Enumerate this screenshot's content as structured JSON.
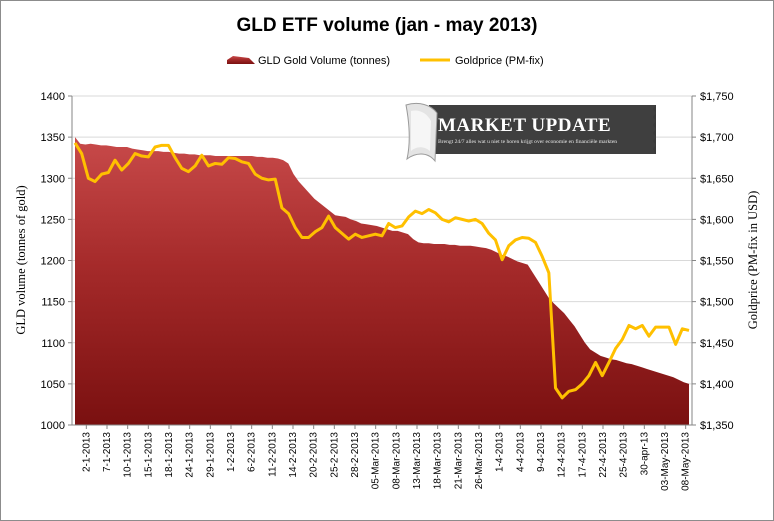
{
  "chart_data": {
    "type": "area+line",
    "title": "GLD ETF volume (jan - may 2013)",
    "ylabel_left": "GLD volume (tonnes of gold)",
    "ylabel_right": "Goldprice (PM-fix in USD)",
    "ylim_left": [
      1000,
      1400
    ],
    "ylim_right": [
      1350,
      1750
    ],
    "yticks_left": [
      "1000",
      "1050",
      "1100",
      "1150",
      "1200",
      "1250",
      "1300",
      "1350",
      "1400"
    ],
    "yticks_right": [
      "$1,350",
      "$1,400",
      "$1,450",
      "$1,500",
      "$1,550",
      "$1,600",
      "$1,650",
      "$1,700",
      "$1,750"
    ],
    "grid": "horizontal",
    "legend_position": "top",
    "x_tick_labels": [
      "2-1-2013",
      "7-1-2013",
      "10-1-2013",
      "15-1-2013",
      "18-1-2013",
      "24-1-2013",
      "29-1-2013",
      "1-2-2013",
      "6-2-2013",
      "11-2-2013",
      "14-2-2013",
      "20-2-2013",
      "25-2-2013",
      "28-2-2013",
      "05-Mar-2013",
      "08-Mar-2013",
      "13-Mar-2013",
      "18-Mar-2013",
      "21-Mar-2013",
      "26-Mar-2013",
      "1-4-2013",
      "4-4-2013",
      "9-4-2013",
      "12-4-2013",
      "17-4-2013",
      "22-4-2013",
      "25-4-2013",
      "30-apr-13",
      "03-May-2013",
      "08-May-2013"
    ],
    "series": [
      {
        "name": "GLD Gold Volume (tonnes)",
        "type": "area",
        "axis": "left",
        "color": "#a52a2a",
        "values": [
          1350,
          1342,
          1341,
          1342,
          1341,
          1340,
          1340,
          1339,
          1338,
          1338,
          1338,
          1336,
          1335,
          1334,
          1333,
          1333,
          1333,
          1332,
          1332,
          1331,
          1330,
          1330,
          1329,
          1329,
          1328,
          1328,
          1328,
          1327,
          1327,
          1327,
          1327,
          1327,
          1327,
          1327,
          1327,
          1326,
          1326,
          1325,
          1325,
          1324,
          1322,
          1318,
          1305,
          1296,
          1289,
          1282,
          1275,
          1270,
          1265,
          1260,
          1255,
          1254,
          1253,
          1250,
          1248,
          1245,
          1244,
          1243,
          1242,
          1240,
          1238,
          1236,
          1236,
          1234,
          1232,
          1226,
          1222,
          1221,
          1221,
          1220,
          1220,
          1220,
          1219,
          1219,
          1218,
          1218,
          1218,
          1217,
          1216,
          1215,
          1213,
          1210,
          1207,
          1205,
          1202,
          1199,
          1197,
          1195,
          1185,
          1175,
          1165,
          1155,
          1148,
          1142,
          1136,
          1128,
          1120,
          1110,
          1100,
          1092,
          1088,
          1084,
          1082,
          1080,
          1079,
          1077,
          1075,
          1074,
          1072,
          1070,
          1068,
          1066,
          1064,
          1062,
          1060,
          1058,
          1055,
          1052,
          1050
        ]
      },
      {
        "name": "Goldprice (PM-fix)",
        "type": "line",
        "axis": "right",
        "color": "#ffc000",
        "values": [
          1693,
          1680,
          1650,
          1646,
          1655,
          1657,
          1672,
          1660,
          1668,
          1680,
          1677,
          1676,
          1688,
          1690,
          1690,
          1675,
          1662,
          1658,
          1665,
          1678,
          1665,
          1668,
          1667,
          1675,
          1674,
          1670,
          1668,
          1655,
          1650,
          1648,
          1649,
          1614,
          1607,
          1590,
          1578,
          1578,
          1585,
          1590,
          1604,
          1590,
          1583,
          1576,
          1582,
          1578,
          1580,
          1582,
          1580,
          1595,
          1590,
          1592,
          1603,
          1610,
          1607,
          1612,
          1608,
          1600,
          1597,
          1602,
          1600,
          1598,
          1600,
          1595,
          1583,
          1575,
          1551,
          1568,
          1575,
          1578,
          1577,
          1572,
          1555,
          1535,
          1395,
          1383,
          1391,
          1393,
          1400,
          1410,
          1426,
          1410,
          1426,
          1443,
          1454,
          1471,
          1467,
          1471,
          1458,
          1469,
          1469,
          1469,
          1448,
          1467,
          1465
        ]
      }
    ]
  },
  "badge": {
    "title": "MARKET UPDATE",
    "subtitle": "Brengt 24/7 alles wat u niet te horen krijgt over economie en financiële markten"
  }
}
